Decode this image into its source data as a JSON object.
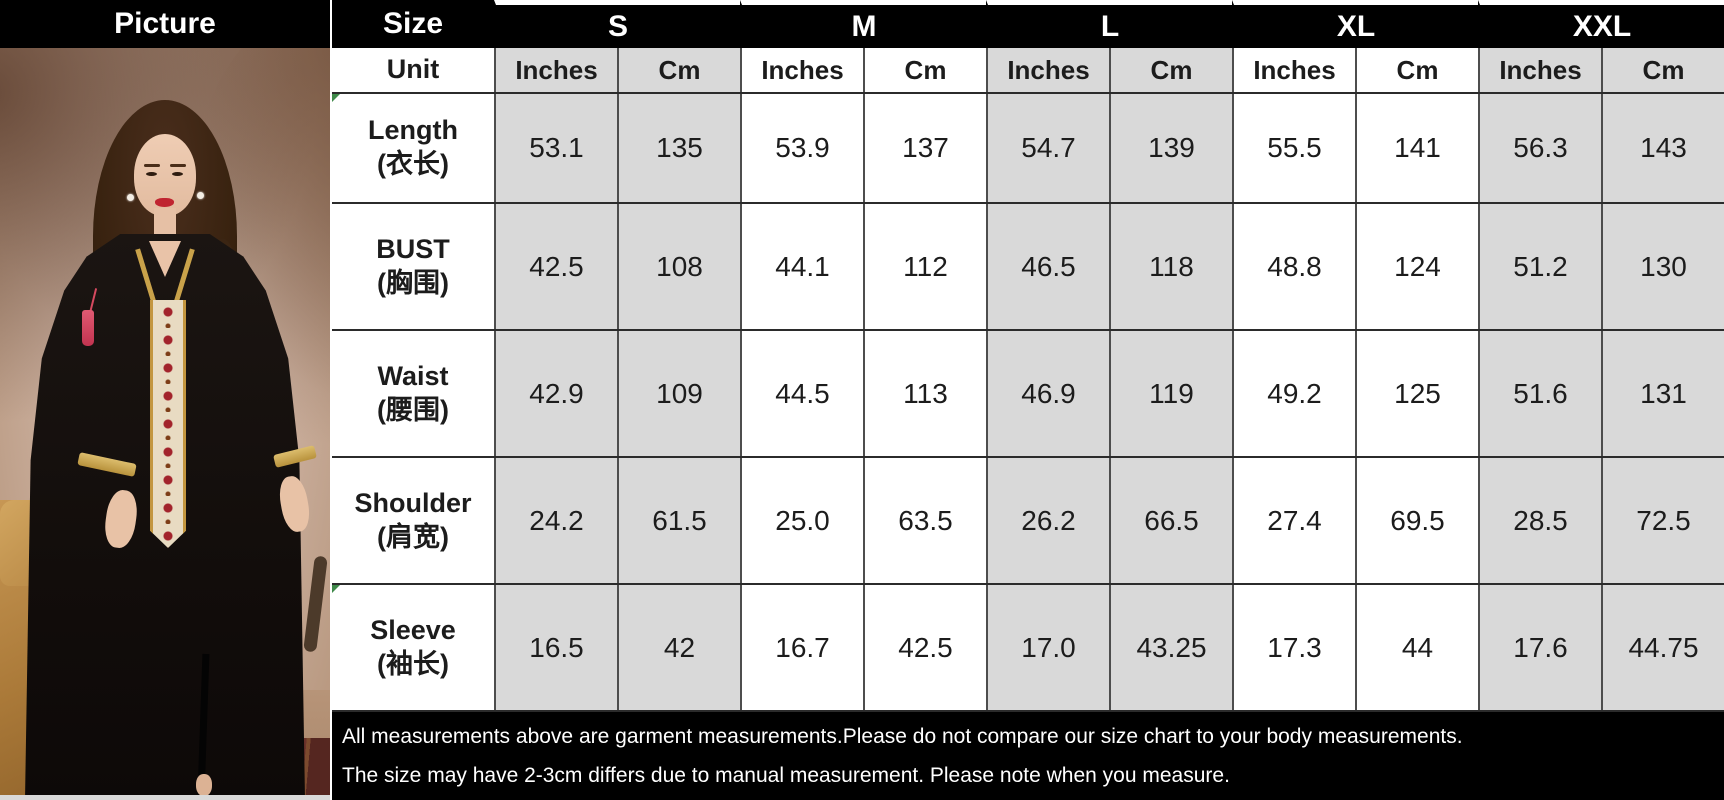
{
  "header": {
    "picture_label": "Picture",
    "size_label": "Size",
    "sizes": [
      "S",
      "M",
      "L",
      "XL",
      "XXL"
    ]
  },
  "unit_row": {
    "label": "Unit",
    "unit_names": [
      "Inches",
      "Cm"
    ]
  },
  "measurements": [
    {
      "label_en": "Length",
      "label_zh": "(衣长)",
      "values": [
        "53.1",
        "135",
        "53.9",
        "137",
        "54.7",
        "139",
        "55.5",
        "141",
        "56.3",
        "143"
      ]
    },
    {
      "label_en": "BUST",
      "label_zh": "(胸围)",
      "values": [
        "42.5",
        "108",
        "44.1",
        "112",
        "46.5",
        "118",
        "48.8",
        "124",
        "51.2",
        "130"
      ]
    },
    {
      "label_en": "Waist",
      "label_zh": "(腰围)",
      "values": [
        "42.9",
        "109",
        "44.5",
        "113",
        "46.9",
        "119",
        "49.2",
        "125",
        "51.6",
        "131"
      ]
    },
    {
      "label_en": "Shoulder",
      "label_zh": "(肩宽)",
      "values": [
        "24.2",
        "61.5",
        "25.0",
        "63.5",
        "26.2",
        "66.5",
        "27.4",
        "69.5",
        "28.5",
        "72.5"
      ]
    },
    {
      "label_en": "Sleeve",
      "label_zh": "(袖长)",
      "values": [
        "16.5",
        "42",
        "16.7",
        "42.5",
        "17.0",
        "43.25",
        "17.3",
        "44",
        "17.6",
        "44.75"
      ]
    }
  ],
  "footnotes": [
    "All measurements above are garment measurements.Please do not compare our size chart to your body measurements.",
    "The size may have 2-3cm differs due to manual measurement. Please note when you measure."
  ],
  "photo": {
    "alt": "Model wearing a black hooded kaftan with gold trim, red embroidered front panel and pink tassel"
  },
  "colors": {
    "header_bg": "#000000",
    "header_text": "#ffffff",
    "cell_shaded": "#d9d9d9",
    "cell_plain": "#ffffff",
    "grid_line": "#4d4d4d",
    "footer_bg": "#000000",
    "footer_text": "#ffffff"
  },
  "chart_data": {
    "type": "table",
    "title": "Garment size chart",
    "columns": [
      "Unit",
      "S Inches",
      "S Cm",
      "M Inches",
      "M Cm",
      "L Inches",
      "L Cm",
      "XL Inches",
      "XL Cm",
      "XXL Inches",
      "XXL Cm"
    ],
    "rows": [
      [
        "Length (衣长)",
        53.1,
        135,
        53.9,
        137,
        54.7,
        139,
        55.5,
        141,
        56.3,
        143
      ],
      [
        "BUST (胸围)",
        42.5,
        108,
        44.1,
        112,
        46.5,
        118,
        48.8,
        124,
        51.2,
        130
      ],
      [
        "Waist (腰围)",
        42.9,
        109,
        44.5,
        113,
        46.9,
        119,
        49.2,
        125,
        51.6,
        131
      ],
      [
        "Shoulder (肩宽)",
        24.2,
        61.5,
        25.0,
        63.5,
        26.2,
        66.5,
        27.4,
        69.5,
        28.5,
        72.5
      ],
      [
        "Sleeve (袖长)",
        16.5,
        42,
        16.7,
        42.5,
        17.0,
        43.25,
        17.3,
        44,
        17.6,
        44.75
      ]
    ]
  }
}
